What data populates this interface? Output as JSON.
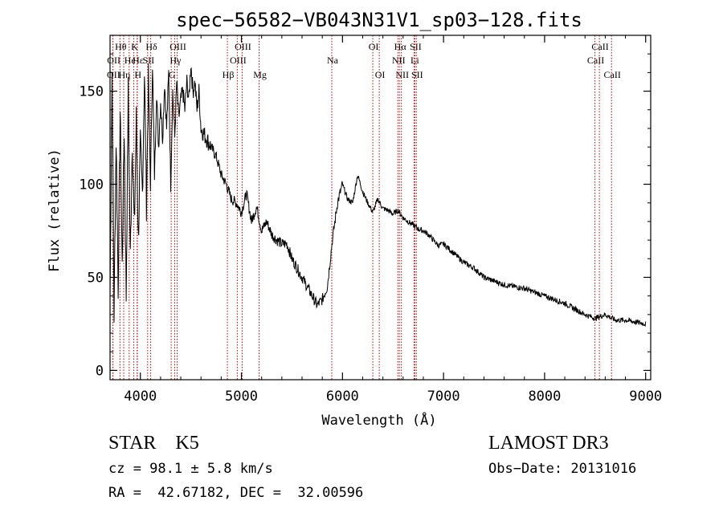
{
  "chart_data": {
    "type": "line",
    "title": "spec−56582−VB043N31V1_sp03−128.fits",
    "xlabel": "Wavelength (Å)",
    "ylabel": "Flux (relative)",
    "xlim": [
      3700,
      9050
    ],
    "ylim": [
      -5,
      180
    ],
    "xticks": [
      4000,
      5000,
      6000,
      7000,
      8000,
      9000
    ],
    "yticks": [
      0,
      50,
      100,
      150
    ],
    "series": [
      {
        "name": "flux",
        "x": [
          3700,
          3720,
          3740,
          3760,
          3780,
          3800,
          3820,
          3840,
          3860,
          3880,
          3900,
          3920,
          3940,
          3960,
          3980,
          4000,
          4020,
          4040,
          4060,
          4080,
          4100,
          4120,
          4140,
          4160,
          4180,
          4200,
          4220,
          4240,
          4260,
          4280,
          4300,
          4320,
          4340,
          4360,
          4380,
          4400,
          4420,
          4440,
          4460,
          4480,
          4500,
          4520,
          4540,
          4560,
          4580,
          4600,
          4650,
          4700,
          4750,
          4800,
          4850,
          4900,
          4950,
          5000,
          5050,
          5100,
          5150,
          5200,
          5250,
          5300,
          5350,
          5400,
          5450,
          5500,
          5550,
          5600,
          5650,
          5700,
          5750,
          5800,
          5850,
          5880,
          5900,
          5950,
          6000,
          6050,
          6100,
          6150,
          6200,
          6250,
          6300,
          6350,
          6400,
          6450,
          6500,
          6550,
          6600,
          6650,
          6700,
          6750,
          6800,
          6850,
          6900,
          6950,
          7000,
          7100,
          7200,
          7300,
          7400,
          7500,
          7600,
          7700,
          7800,
          7900,
          8000,
          8100,
          8200,
          8300,
          8400,
          8500,
          8600,
          8700,
          8800,
          8900,
          9000
        ],
        "values": [
          40,
          160,
          30,
          125,
          45,
          140,
          55,
          130,
          40,
          150,
          60,
          125,
          75,
          135,
          70,
          120,
          95,
          160,
          90,
          155,
          100,
          165,
          105,
          150,
          120,
          145,
          125,
          155,
          130,
          160,
          100,
          150,
          125,
          155,
          135,
          145,
          150,
          140,
          155,
          145,
          165,
          150,
          155,
          140,
          150,
          130,
          125,
          120,
          115,
          105,
          100,
          92,
          90,
          85,
          95,
          80,
          88,
          75,
          80,
          73,
          70,
          68,
          68,
          60,
          55,
          50,
          45,
          40,
          35,
          38,
          45,
          60,
          70,
          90,
          100,
          92,
          90,
          105,
          96,
          90,
          85,
          92,
          87,
          86,
          84,
          86,
          82,
          80,
          78,
          76,
          75,
          73,
          70,
          67,
          68,
          63,
          58,
          55,
          50,
          48,
          46,
          45,
          44,
          42,
          40,
          38,
          36,
          33,
          30,
          28,
          30,
          27,
          27,
          26,
          25
        ]
      }
    ],
    "lines": [
      {
        "name": "OII",
        "wl": 3727,
        "row": 3
      },
      {
        "name": "OII",
        "wl": 3729,
        "row": 2
      },
      {
        "name": "Hθ",
        "wl": 3798,
        "row": 1
      },
      {
        "name": "Hη",
        "wl": 3835,
        "row": 3
      },
      {
        "name": "He",
        "wl": 3889,
        "row": 2
      },
      {
        "name": "K",
        "wl": 3934,
        "row": 1
      },
      {
        "name": "Hε",
        "wl": 3970,
        "row": 2
      },
      {
        "name": "H",
        "wl": 3968,
        "row": 3
      },
      {
        "name": "SII",
        "wl": 4072,
        "row": 2
      },
      {
        "name": "Hδ",
        "wl": 4102,
        "row": 1
      },
      {
        "name": "G",
        "wl": 4305,
        "row": 3
      },
      {
        "name": "OIII",
        "wl": 4364,
        "row": 1
      },
      {
        "name": "Hγ",
        "wl": 4340,
        "row": 2
      },
      {
        "name": "Hβ",
        "wl": 4861,
        "row": 3
      },
      {
        "name": "OIII",
        "wl": 4959,
        "row": 2
      },
      {
        "name": "OIII",
        "wl": 5007,
        "row": 1
      },
      {
        "name": "Mg",
        "wl": 5175,
        "row": 3
      },
      {
        "name": "Na",
        "wl": 5894,
        "row": 2
      },
      {
        "name": "OI",
        "wl": 6300,
        "row": 1
      },
      {
        "name": "OI",
        "wl": 6364,
        "row": 3
      },
      {
        "name": "NII",
        "wl": 6548,
        "row": 2
      },
      {
        "name": "NII",
        "wl": 6583,
        "row": 3
      },
      {
        "name": "Hα",
        "wl": 6563,
        "row": 1
      },
      {
        "name": "Li",
        "wl": 6708,
        "row": 2
      },
      {
        "name": "SII",
        "wl": 6716,
        "row": 1
      },
      {
        "name": "SII",
        "wl": 6731,
        "row": 3
      },
      {
        "name": "CaII",
        "wl": 8498,
        "row": 2
      },
      {
        "name": "CaII",
        "wl": 8542,
        "row": 1
      },
      {
        "name": "CaII",
        "wl": 8662,
        "row": 3
      }
    ]
  },
  "info": {
    "class": "STAR    K5",
    "survey": "LAMOST DR3",
    "cz": "cz = 98.1 ± 5.8 km/s",
    "obs_date": "Obs−Date: 20131016",
    "coords": "RA =  42.67182, DEC =  32.00596"
  },
  "colors": {
    "line": "#000000",
    "marker": "#c00000",
    "axis": "#000000"
  }
}
